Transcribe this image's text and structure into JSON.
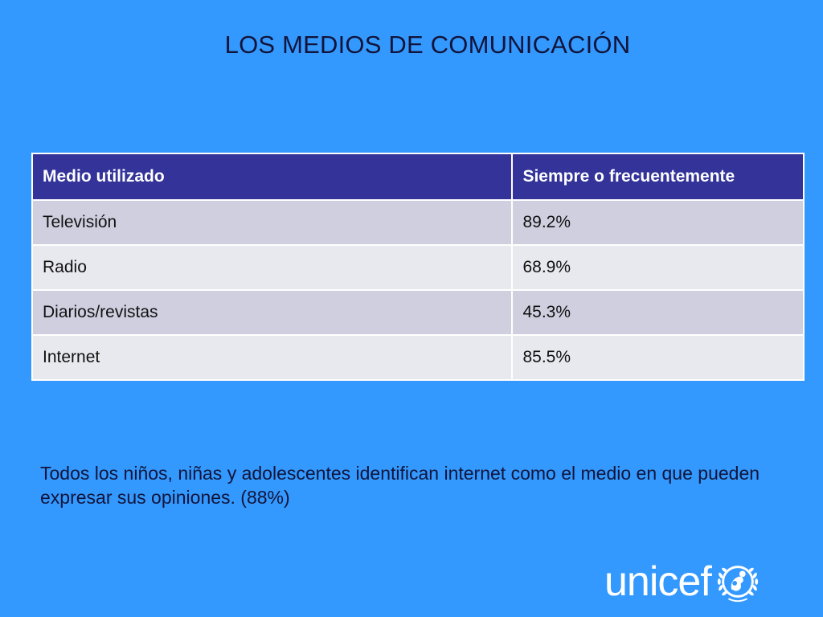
{
  "slide": {
    "title": "LOS MEDIOS DE COMUNICACIÓN",
    "table": {
      "headers": [
        "Medio utilizado",
        "Siempre o frecuentemente"
      ],
      "rows": [
        [
          "Televisión",
          "89.2%"
        ],
        [
          "Radio",
          "68.9%"
        ],
        [
          "Diarios/revistas",
          "45.3%"
        ],
        [
          "Internet",
          "85.5%"
        ]
      ]
    },
    "note": "Todos los niños, niñas y adolescentes identifican internet como el medio en que pueden expresar sus opiniones. (88%)",
    "logo": {
      "word": "unicef",
      "emblem_icon": "unicef-emblem-icon"
    }
  },
  "colors": {
    "background": "#3399ff",
    "header_fill": "#333399",
    "row_odd_fill": "#cfcfe0",
    "row_even_fill": "#e8e8ef",
    "title_text": "#11143a",
    "logo": "#ffffff"
  }
}
